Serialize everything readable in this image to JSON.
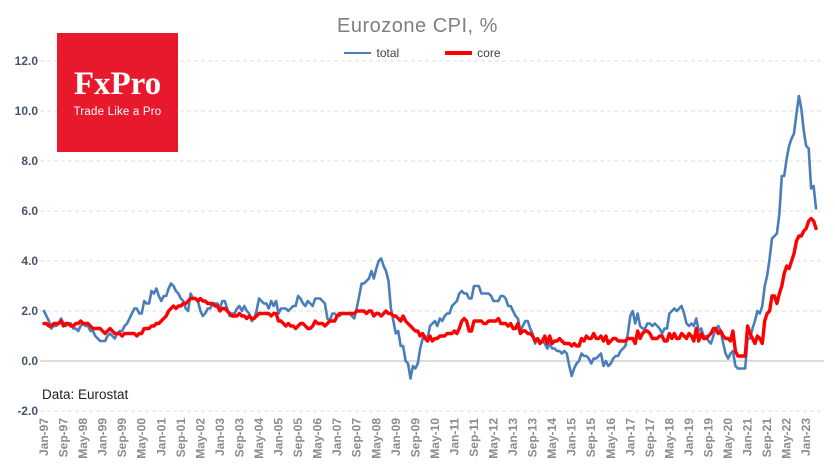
{
  "logo": {
    "title": "FxPro",
    "tagline": "Trade Like a Pro",
    "bg_color": "#e8192c"
  },
  "footer": {
    "source": "Data: Eurostat"
  },
  "chart_data": {
    "type": "line",
    "title": "Eurozone CPI, %",
    "xlabel": "",
    "ylabel": "",
    "x_unit": "month",
    "x_start": "Jan-1997",
    "x_end": "May-2023",
    "ylim": [
      -2,
      12
    ],
    "y_ticks": [
      12,
      10,
      8,
      6,
      4,
      2,
      0,
      -2
    ],
    "grid": "horizontal-dashed",
    "legend_position": "top-center",
    "x_tick_every": 8,
    "x_tick_labels": [
      "Jan-97",
      "Sep-97",
      "May-98",
      "Jan-99",
      "Sep-99",
      "May-00",
      "Jan-01",
      "Sep-01",
      "May-02",
      "Jan-03",
      "Sep-03",
      "May-04",
      "Jan-05",
      "Sep-05",
      "May-06",
      "Jan-07",
      "Sep-07",
      "May-08",
      "Jan-09",
      "Sep-09",
      "May-10",
      "Jan-11",
      "Sep-11",
      "May-12",
      "Jan-13",
      "Sep-13",
      "May-14",
      "Jan-15",
      "Sep-15",
      "May-16",
      "Jan-17",
      "Sep-17",
      "May-18",
      "Jan-19",
      "Sep-19",
      "May-20",
      "Jan-21",
      "Sep-21",
      "May-22",
      "Jan-23"
    ],
    "series": [
      {
        "name": "total",
        "color": "#4a7ebb",
        "width": 2.6,
        "values": [
          2.0,
          1.8,
          1.6,
          1.3,
          1.4,
          1.4,
          1.5,
          1.7,
          1.5,
          1.4,
          1.5,
          1.5,
          1.3,
          1.3,
          1.2,
          1.4,
          1.5,
          1.4,
          1.4,
          1.2,
          1.2,
          1.0,
          0.9,
          0.8,
          0.8,
          0.8,
          1.0,
          1.1,
          1.0,
          0.9,
          1.1,
          1.2,
          1.2,
          1.4,
          1.5,
          1.7,
          1.9,
          2.1,
          2.1,
          1.9,
          1.9,
          2.4,
          2.3,
          2.3,
          2.8,
          2.7,
          2.9,
          2.6,
          2.4,
          2.6,
          2.6,
          2.9,
          3.1,
          3.0,
          2.8,
          2.7,
          2.5,
          2.4,
          2.1,
          2.0,
          2.7,
          2.5,
          2.5,
          2.4,
          2.0,
          1.8,
          1.9,
          2.1,
          2.1,
          2.3,
          2.3,
          2.3,
          2.1,
          2.4,
          2.4,
          2.1,
          1.8,
          1.9,
          1.9,
          2.1,
          2.2,
          2.0,
          2.2,
          2.0,
          1.9,
          1.6,
          1.7,
          2.0,
          2.5,
          2.4,
          2.3,
          2.3,
          2.1,
          2.4,
          2.2,
          2.4,
          1.9,
          2.1,
          2.1,
          2.1,
          2.0,
          2.1,
          2.2,
          2.2,
          2.6,
          2.5,
          2.3,
          2.2,
          2.4,
          2.3,
          2.2,
          2.5,
          2.5,
          2.5,
          2.4,
          2.3,
          1.7,
          1.6,
          1.9,
          1.9,
          1.8,
          1.8,
          1.9,
          1.9,
          1.9,
          1.9,
          1.8,
          1.7,
          2.1,
          2.6,
          3.1,
          3.1,
          3.2,
          3.3,
          3.6,
          3.3,
          3.7,
          4.0,
          4.1,
          3.8,
          3.6,
          3.2,
          2.1,
          1.6,
          1.1,
          1.2,
          0.6,
          0.6,
          0.0,
          -0.1,
          -0.7,
          -0.2,
          -0.3,
          -0.1,
          0.5,
          0.9,
          1.0,
          0.9,
          1.4,
          1.5,
          1.6,
          1.4,
          1.7,
          1.6,
          1.8,
          1.9,
          1.9,
          2.2,
          2.3,
          2.4,
          2.7,
          2.8,
          2.7,
          2.7,
          2.5,
          2.5,
          3.0,
          3.0,
          3.0,
          2.7,
          2.7,
          2.7,
          2.7,
          2.6,
          2.4,
          2.4,
          2.4,
          2.6,
          2.6,
          2.5,
          2.2,
          2.2,
          2.0,
          1.8,
          1.7,
          1.2,
          1.4,
          1.6,
          1.6,
          1.3,
          1.1,
          0.7,
          0.9,
          0.8,
          0.8,
          0.7,
          0.5,
          0.7,
          0.5,
          0.5,
          0.4,
          0.4,
          0.3,
          0.4,
          0.3,
          -0.2,
          -0.6,
          -0.3,
          -0.1,
          0.0,
          0.3,
          0.2,
          0.2,
          0.1,
          -0.1,
          0.1,
          0.1,
          0.2,
          0.3,
          -0.2,
          0.0,
          -0.2,
          -0.1,
          0.1,
          0.2,
          0.2,
          0.4,
          0.5,
          0.6,
          1.1,
          1.8,
          2.0,
          1.5,
          1.9,
          1.4,
          1.3,
          1.3,
          1.5,
          1.5,
          1.4,
          1.5,
          1.4,
          1.3,
          1.1,
          1.3,
          1.3,
          1.9,
          2.0,
          2.1,
          2.0,
          2.1,
          2.2,
          1.9,
          1.5,
          1.4,
          1.5,
          1.4,
          1.7,
          1.2,
          1.3,
          1.0,
          1.0,
          0.8,
          0.7,
          1.0,
          1.3,
          1.4,
          1.2,
          0.7,
          0.3,
          0.1,
          0.3,
          0.4,
          -0.2,
          -0.3,
          -0.3,
          -0.3,
          -0.3,
          0.9,
          0.9,
          1.3,
          1.6,
          2.0,
          1.9,
          2.2,
          3.0,
          3.4,
          4.1,
          4.9,
          5.0,
          5.1,
          5.9,
          7.4,
          7.4,
          8.1,
          8.6,
          8.9,
          9.1,
          9.9,
          10.6,
          10.1,
          9.2,
          8.6,
          8.5,
          6.9,
          7.0,
          6.1
        ]
      },
      {
        "name": "core",
        "color": "#ff0000",
        "width": 3.4,
        "values": [
          1.5,
          1.5,
          1.4,
          1.4,
          1.5,
          1.5,
          1.5,
          1.6,
          1.4,
          1.5,
          1.5,
          1.4,
          1.4,
          1.5,
          1.5,
          1.6,
          1.5,
          1.5,
          1.5,
          1.4,
          1.3,
          1.3,
          1.3,
          1.3,
          1.2,
          1.1,
          1.2,
          1.3,
          1.2,
          1.1,
          1.1,
          1.1,
          1.0,
          1.1,
          1.1,
          1.1,
          1.1,
          1.1,
          1.0,
          1.1,
          1.1,
          1.3,
          1.3,
          1.3,
          1.4,
          1.4,
          1.5,
          1.5,
          1.6,
          1.7,
          1.8,
          2.0,
          2.1,
          2.2,
          2.1,
          2.2,
          2.2,
          2.3,
          2.3,
          2.4,
          2.5,
          2.5,
          2.5,
          2.4,
          2.5,
          2.4,
          2.4,
          2.3,
          2.3,
          2.3,
          2.2,
          2.2,
          2.0,
          2.1,
          2.1,
          2.0,
          1.9,
          1.8,
          1.8,
          1.8,
          1.9,
          1.8,
          1.8,
          1.7,
          1.8,
          1.7,
          1.7,
          1.8,
          1.9,
          1.9,
          1.9,
          1.9,
          1.9,
          1.8,
          1.9,
          1.9,
          1.6,
          1.6,
          1.5,
          1.4,
          1.5,
          1.4,
          1.4,
          1.3,
          1.4,
          1.5,
          1.5,
          1.4,
          1.3,
          1.3,
          1.4,
          1.6,
          1.5,
          1.5,
          1.5,
          1.4,
          1.5,
          1.6,
          1.6,
          1.6,
          1.8,
          1.9,
          1.9,
          1.9,
          1.9,
          1.9,
          1.9,
          1.9,
          2.0,
          2.0,
          2.0,
          2.0,
          1.9,
          2.0,
          2.0,
          1.8,
          1.9,
          1.9,
          1.8,
          1.9,
          2.0,
          1.9,
          1.9,
          1.8,
          1.8,
          1.7,
          1.6,
          1.8,
          1.6,
          1.5,
          1.4,
          1.3,
          1.2,
          1.2,
          1.0,
          1.1,
          0.9,
          0.8,
          1.0,
          0.8,
          0.9,
          0.9,
          1.0,
          1.0,
          1.0,
          1.1,
          1.1,
          1.1,
          1.2,
          1.1,
          1.3,
          1.6,
          1.7,
          1.6,
          1.2,
          1.2,
          1.6,
          1.6,
          1.6,
          1.6,
          1.5,
          1.5,
          1.6,
          1.6,
          1.6,
          1.6,
          1.7,
          1.5,
          1.5,
          1.5,
          1.4,
          1.5,
          1.3,
          1.3,
          1.5,
          1.1,
          1.2,
          1.2,
          1.1,
          1.1,
          1.0,
          0.8,
          0.9,
          0.7,
          0.8,
          1.0,
          0.7,
          1.0,
          0.7,
          0.8,
          0.8,
          0.9,
          0.8,
          0.7,
          0.7,
          0.7,
          0.6,
          0.7,
          0.6,
          0.6,
          0.9,
          0.8,
          1.0,
          0.9,
          0.9,
          1.1,
          0.9,
          0.9,
          1.0,
          0.8,
          1.0,
          0.7,
          0.8,
          0.9,
          0.9,
          0.8,
          0.8,
          0.8,
          0.8,
          0.9,
          0.9,
          0.9,
          0.7,
          1.2,
          0.9,
          1.1,
          1.2,
          1.2,
          1.1,
          0.9,
          0.9,
          0.9,
          1.0,
          1.0,
          0.8,
          0.8,
          1.1,
          0.9,
          1.1,
          0.9,
          0.9,
          1.1,
          1.0,
          0.9,
          1.1,
          1.0,
          0.8,
          1.3,
          0.8,
          1.1,
          0.9,
          0.9,
          1.0,
          1.1,
          1.3,
          1.3,
          1.1,
          1.2,
          1.0,
          0.9,
          0.9,
          0.8,
          1.2,
          0.4,
          0.2,
          0.2,
          0.2,
          0.2,
          1.4,
          1.1,
          0.9,
          0.7,
          1.0,
          0.9,
          0.7,
          1.6,
          1.9,
          2.0,
          2.6,
          2.6,
          2.3,
          2.7,
          3.0,
          3.5,
          3.8,
          3.7,
          4.0,
          4.3,
          4.8,
          5.0,
          5.0,
          5.2,
          5.3,
          5.6,
          5.7,
          5.6,
          5.3
        ]
      }
    ]
  }
}
